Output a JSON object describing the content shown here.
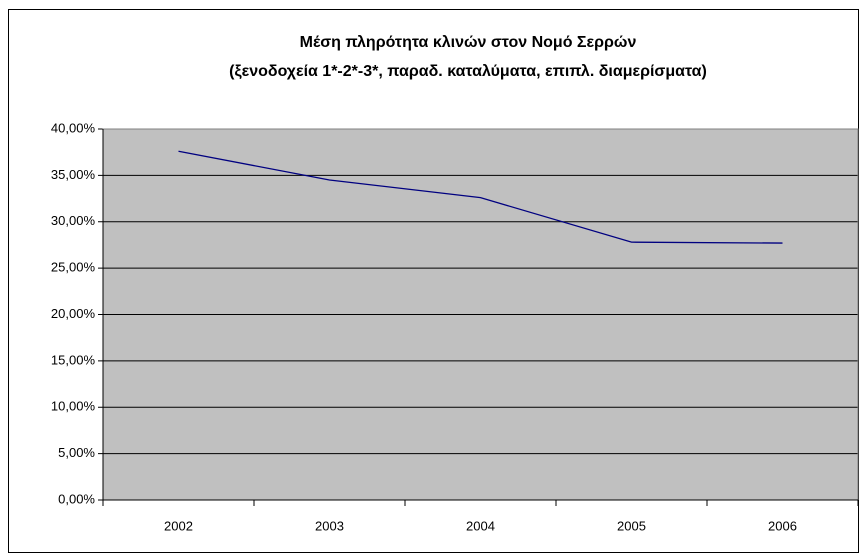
{
  "chart_data": {
    "type": "line",
    "title": "Μέση πληρότητα κλινών στον Νομό Σερρών",
    "subtitle": "(ξενοδοχεία 1*-2*-3*, παραδ. καταλύματα, επιπλ. διαμερίσματα)",
    "categories": [
      "2002",
      "2003",
      "2004",
      "2005",
      "2006"
    ],
    "series": [
      {
        "color": "#000080",
        "values": [
          37.6,
          34.5,
          32.6,
          27.8,
          27.7
        ]
      }
    ],
    "ylim": [
      0,
      40
    ],
    "yticks": [
      {
        "value": 0,
        "label": "0,00%"
      },
      {
        "value": 5,
        "label": "5,00%"
      },
      {
        "value": 10,
        "label": "10,00%"
      },
      {
        "value": 15,
        "label": "15,00%"
      },
      {
        "value": 20,
        "label": "20,00%"
      },
      {
        "value": 25,
        "label": "25,00%"
      },
      {
        "value": 30,
        "label": "30,00%"
      },
      {
        "value": 35,
        "label": "35,00%"
      },
      {
        "value": 40,
        "label": "40,00%"
      }
    ],
    "grid": true
  }
}
